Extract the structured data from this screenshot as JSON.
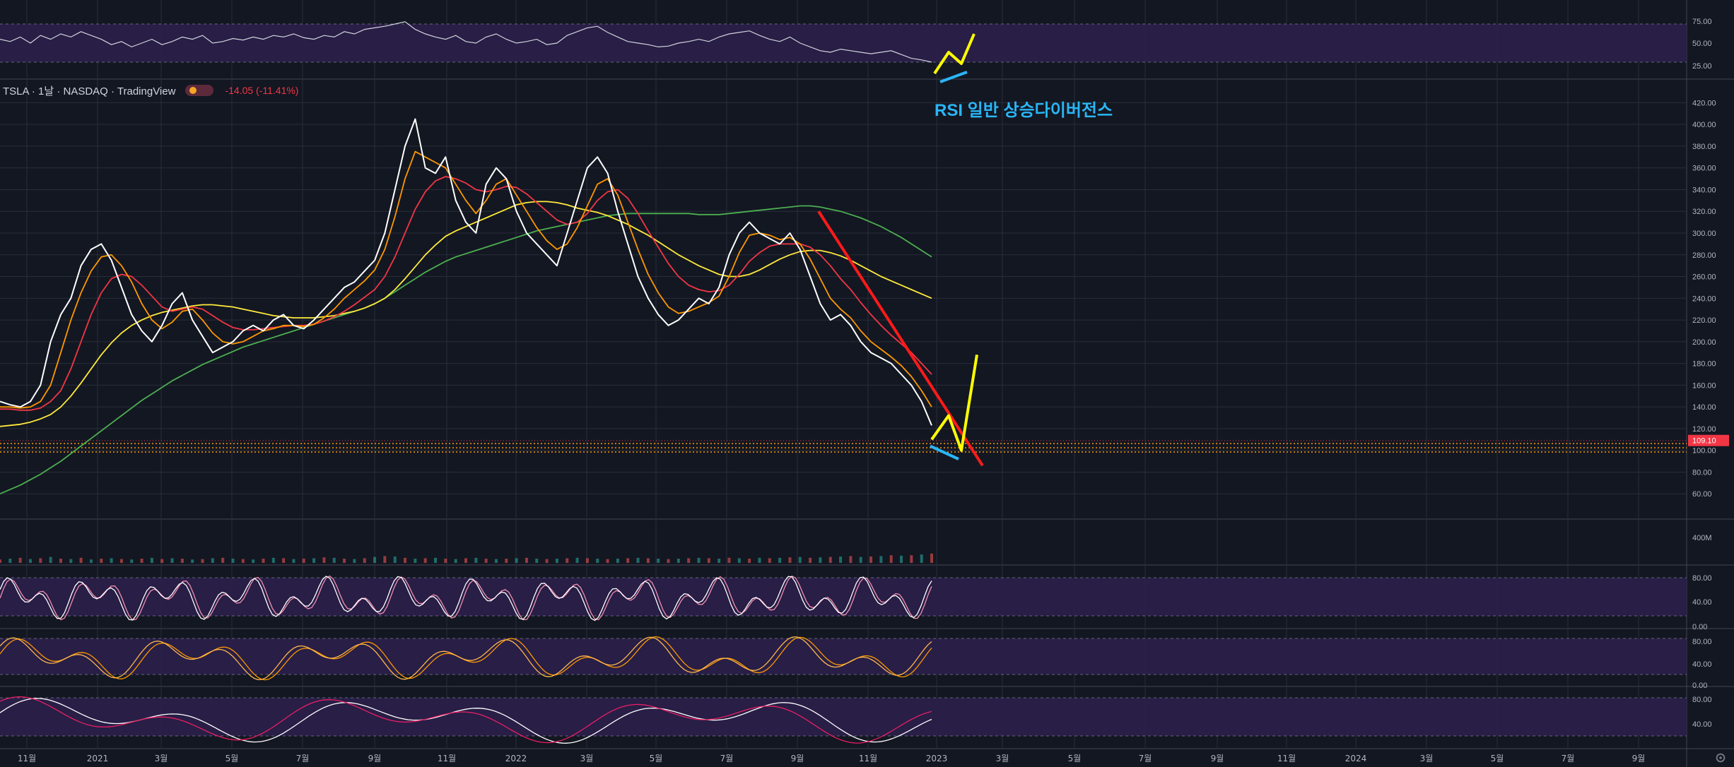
{
  "header": {
    "symbol": "TSLA · 1날 · NASDAQ · TradingView",
    "change": "-14.05 (-11.41%)"
  },
  "annotation": "RSI 일반 상승다이버전스",
  "price_tag": "109.10",
  "volume_label": "400M",
  "colors": {
    "background": "#131722",
    "grid": "#2a2e39",
    "oscillator_band": "#2b1f4a",
    "price_line": "#ffffff",
    "ma_orange": "#ff9800",
    "ma_red": "#f23645",
    "ma_yellow": "#ffeb3b",
    "ma_green": "#4caf50",
    "trendline": "#ff1a1a",
    "drawing_yellow": "#ffff00",
    "drawing_blue": "#29b6f6",
    "support": "#ff9800"
  },
  "chart_data": {
    "type": "line",
    "title": "",
    "x_tick_labels": [
      "11월",
      "2021",
      "3월",
      "5월",
      "7월",
      "9월",
      "11월",
      "2022",
      "3월",
      "5월",
      "7월",
      "9월",
      "11월",
      "2023",
      "3월",
      "5월",
      "7월",
      "9월",
      "11월",
      "2024",
      "3월",
      "5월",
      "7월",
      "9월"
    ],
    "price_axis": {
      "ylim": [
        40,
        430
      ],
      "ticks": [
        "420.00",
        "400.00",
        "380.00",
        "360.00",
        "340.00",
        "320.00",
        "300.00",
        "280.00",
        "260.00",
        "240.00",
        "220.00",
        "200.00",
        "180.00",
        "160.00",
        "140.00",
        "120.00",
        "100.00",
        "80.00",
        "60.00"
      ]
    },
    "rsi_axis": {
      "ticks": [
        "75.00",
        "50.00",
        "25.00"
      ]
    },
    "stoch_axis_1": {
      "ticks": [
        "80.00",
        "40.00",
        "0.00"
      ]
    },
    "stoch_axis_2": {
      "ticks": [
        "80.00",
        "40.00",
        "0.00"
      ]
    },
    "stoch_axis_3": {
      "ticks": [
        "80.00",
        "40.00"
      ]
    },
    "series": [
      {
        "key": "price",
        "values": [
          145,
          142,
          140,
          145,
          160,
          200,
          225,
          240,
          270,
          285,
          290,
          275,
          250,
          225,
          210,
          200,
          215,
          235,
          245,
          220,
          205,
          190,
          195,
          200,
          210,
          215,
          210,
          220,
          225,
          215,
          212,
          220,
          230,
          240,
          250,
          255,
          265,
          275,
          300,
          340,
          380,
          405,
          360,
          355,
          370,
          330,
          310,
          300,
          345,
          360,
          350,
          320,
          300,
          290,
          280,
          270,
          300,
          330,
          360,
          370,
          355,
          320,
          290,
          260,
          240,
          225,
          215,
          220,
          230,
          240,
          235,
          250,
          280,
          300,
          310,
          300,
          295,
          290,
          300,
          285,
          260,
          235,
          220,
          225,
          215,
          200,
          190,
          185,
          180,
          170,
          160,
          145,
          123
        ]
      },
      {
        "key": "ma_orange",
        "values": [
          140,
          140,
          139,
          140,
          145,
          160,
          190,
          220,
          245,
          265,
          278,
          280,
          270,
          255,
          235,
          220,
          212,
          218,
          228,
          230,
          220,
          208,
          200,
          198,
          200,
          205,
          210,
          212,
          215,
          215,
          214,
          216,
          222,
          230,
          240,
          248,
          256,
          266,
          285,
          315,
          350,
          375,
          370,
          365,
          360,
          345,
          330,
          318,
          330,
          345,
          350,
          335,
          320,
          305,
          293,
          285,
          290,
          305,
          325,
          345,
          350,
          335,
          310,
          285,
          262,
          245,
          232,
          226,
          228,
          232,
          236,
          242,
          260,
          282,
          298,
          300,
          298,
          294,
          296,
          290,
          276,
          258,
          240,
          230,
          222,
          210,
          200,
          193,
          186,
          178,
          168,
          155,
          140
        ]
      },
      {
        "key": "ma_red",
        "values": [
          138,
          138,
          137,
          137,
          139,
          145,
          155,
          175,
          200,
          225,
          245,
          258,
          262,
          260,
          252,
          242,
          232,
          228,
          230,
          232,
          230,
          224,
          218,
          213,
          211,
          211,
          212,
          213,
          214,
          215,
          215,
          216,
          219,
          223,
          228,
          234,
          241,
          248,
          260,
          278,
          300,
          322,
          338,
          348,
          352,
          350,
          346,
          340,
          338,
          340,
          343,
          342,
          336,
          328,
          320,
          312,
          308,
          310,
          318,
          330,
          338,
          340,
          332,
          318,
          302,
          287,
          272,
          260,
          252,
          248,
          246,
          247,
          252,
          262,
          274,
          282,
          288,
          290,
          290,
          290,
          287,
          280,
          270,
          258,
          248,
          236,
          225,
          215,
          206,
          198,
          190,
          180,
          170
        ]
      },
      {
        "key": "ma_yellow",
        "values": [
          122,
          123,
          124,
          126,
          129,
          133,
          140,
          150,
          162,
          175,
          188,
          199,
          208,
          215,
          220,
          224,
          227,
          229,
          231,
          233,
          234,
          234,
          233,
          232,
          230,
          228,
          226,
          224,
          223,
          222,
          222,
          222,
          223,
          224,
          226,
          228,
          231,
          235,
          240,
          248,
          258,
          269,
          280,
          289,
          297,
          302,
          306,
          310,
          314,
          318,
          322,
          326,
          328,
          329,
          329,
          328,
          326,
          323,
          321,
          319,
          316,
          312,
          308,
          303,
          298,
          292,
          286,
          280,
          275,
          270,
          266,
          262,
          260,
          260,
          262,
          266,
          271,
          276,
          280,
          283,
          284,
          284,
          282,
          279,
          275,
          270,
          265,
          260,
          256,
          252,
          248,
          244,
          240
        ]
      },
      {
        "key": "ma_green",
        "values": [
          60,
          64,
          68,
          73,
          78,
          84,
          90,
          97,
          104,
          111,
          118,
          125,
          132,
          139,
          146,
          152,
          158,
          164,
          169,
          174,
          179,
          183,
          187,
          191,
          195,
          198,
          201,
          204,
          207,
          210,
          213,
          216,
          219,
          222,
          225,
          228,
          231,
          235,
          240,
          246,
          252,
          258,
          264,
          269,
          274,
          278,
          281,
          284,
          287,
          290,
          293,
          296,
          299,
          302,
          304,
          306,
          308,
          310,
          312,
          314,
          316,
          317,
          318,
          318,
          318,
          318,
          318,
          318,
          318,
          317,
          317,
          317,
          318,
          319,
          320,
          321,
          322,
          323,
          324,
          325,
          325,
          324,
          322,
          320,
          317,
          314,
          310,
          306,
          301,
          296,
          290,
          284,
          278
        ]
      }
    ],
    "rsi_values": [
      55,
      52,
      58,
      50,
      60,
      55,
      62,
      58,
      65,
      60,
      55,
      48,
      52,
      45,
      50,
      55,
      48,
      52,
      58,
      55,
      60,
      50,
      52,
      56,
      54,
      58,
      55,
      60,
      58,
      62,
      57,
      55,
      60,
      58,
      65,
      62,
      68,
      70,
      72,
      75,
      78,
      68,
      62,
      58,
      55,
      60,
      52,
      50,
      58,
      62,
      55,
      50,
      52,
      55,
      48,
      50,
      60,
      65,
      70,
      72,
      64,
      58,
      52,
      50,
      48,
      45,
      46,
      50,
      52,
      55,
      52,
      58,
      62,
      64,
      66,
      60,
      55,
      52,
      58,
      50,
      45,
      40,
      38,
      42,
      40,
      38,
      36,
      38,
      40,
      35,
      30,
      28,
      25
    ],
    "volume_values": [
      8,
      10,
      12,
      9,
      11,
      14,
      10,
      9,
      12,
      8,
      10,
      11,
      9,
      8,
      10,
      12,
      9,
      11,
      10,
      8,
      9,
      11,
      12,
      10,
      9,
      8,
      10,
      12,
      11,
      9,
      10,
      11,
      13,
      12,
      10,
      9,
      11,
      14,
      16,
      15,
      12,
      10,
      11,
      12,
      10,
      9,
      11,
      12,
      10,
      9,
      10,
      11,
      12,
      10,
      9,
      10,
      11,
      12,
      11,
      10,
      9,
      10,
      11,
      12,
      11,
      10,
      9,
      10,
      11,
      12,
      11,
      10,
      12,
      11,
      10,
      12,
      11,
      12,
      13,
      14,
      12,
      13,
      14,
      15,
      16,
      14,
      15,
      16,
      18,
      17,
      18,
      20,
      22
    ]
  }
}
